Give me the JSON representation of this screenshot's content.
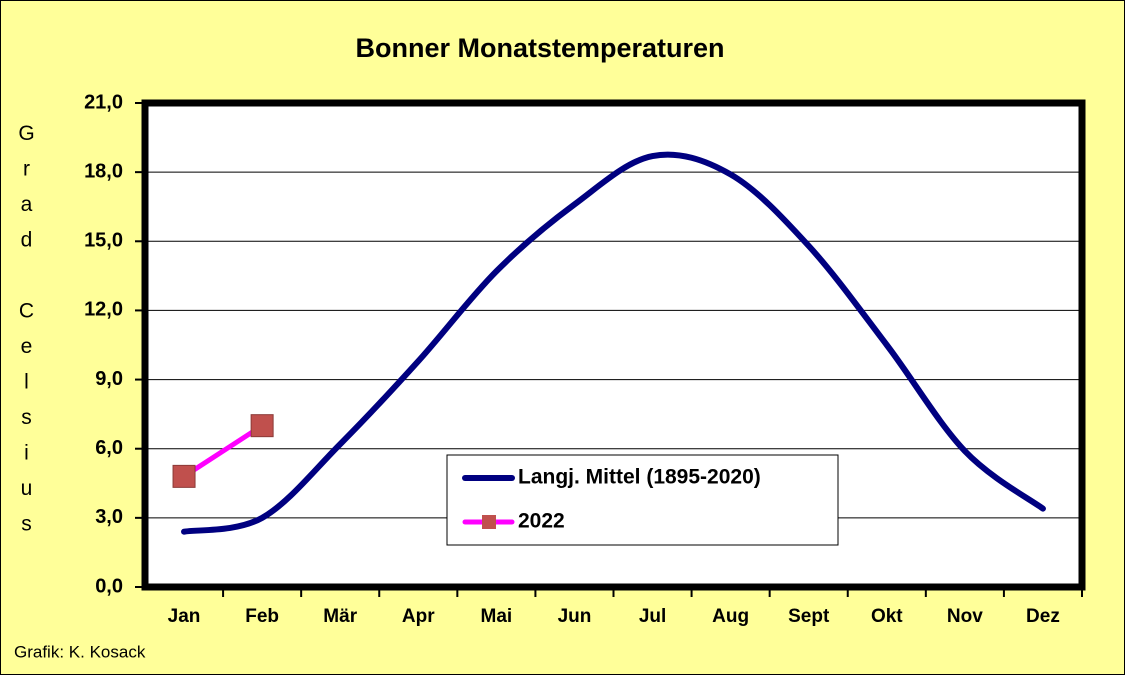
{
  "chart_data": {
    "type": "line",
    "title": "Bonner Monatstemperaturen",
    "y_label": "Grad Celsius",
    "footer": "Grafik:  K. Kosack",
    "categories": [
      "Jan",
      "Feb",
      "Mär",
      "Apr",
      "Mai",
      "Jun",
      "Jul",
      "Aug",
      "Sept",
      "Okt",
      "Nov",
      "Dez"
    ],
    "series": [
      {
        "name": "Langj. Mittel (1895-2020)",
        "color": "#000080",
        "smooth": true,
        "values": [
          2.4,
          3.0,
          6.2,
          9.8,
          13.7,
          16.6,
          18.7,
          17.9,
          14.8,
          10.5,
          5.9,
          3.4
        ]
      },
      {
        "name": "2022",
        "color": "#ff00ff",
        "marker_color": "#c0504d",
        "smooth": false,
        "values": [
          4.8,
          7.0,
          null,
          null,
          null,
          null,
          null,
          null,
          null,
          null,
          null,
          null
        ]
      }
    ],
    "ylim": [
      0,
      21
    ],
    "yticks": [
      {
        "value": 0,
        "label": "0,0"
      },
      {
        "value": 3,
        "label": "3,0"
      },
      {
        "value": 6,
        "label": "6,0"
      },
      {
        "value": 9,
        "label": "9,0"
      },
      {
        "value": 12,
        "label": "12,0"
      },
      {
        "value": 15,
        "label": "15,0"
      },
      {
        "value": 18,
        "label": "18,0"
      },
      {
        "value": 21,
        "label": "21,0"
      }
    ],
    "grid": true,
    "background": "#ffff99"
  }
}
